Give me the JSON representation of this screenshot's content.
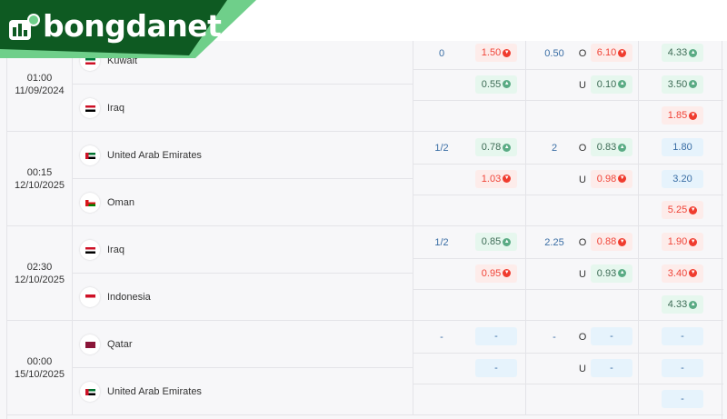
{
  "brand": {
    "name": "bongdanet",
    "colors": {
      "dark_green": "#0e5a22",
      "light_green": "#6fcf8a"
    }
  },
  "colors": {
    "up": "#5aab84",
    "down": "#f03c2e",
    "line": "#3a6ea5"
  },
  "matches": [
    {
      "time": "01:00",
      "date": "11/09/2024",
      "teams": [
        {
          "name": "Kuwait",
          "flag": "kuwait"
        },
        {
          "name": "Iraq",
          "flag": "iraq"
        }
      ],
      "handicap": {
        "line": "0",
        "odds": [
          {
            "v": "1.50",
            "t": "down"
          },
          {
            "v": "0.55",
            "t": "up"
          }
        ]
      },
      "over_under": {
        "line": "0.50",
        "labels": [
          "O",
          "U"
        ],
        "odds": [
          {
            "v": "6.10",
            "t": "down"
          },
          {
            "v": "0.10",
            "t": "up"
          }
        ]
      },
      "x12": [
        {
          "v": "4.33",
          "t": "up"
        },
        {
          "v": "3.50",
          "t": "up"
        },
        {
          "v": "1.85",
          "t": "down"
        }
      ]
    },
    {
      "time": "00:15",
      "date": "12/10/2025",
      "teams": [
        {
          "name": "United Arab Emirates",
          "flag": "uae"
        },
        {
          "name": "Oman",
          "flag": "oman"
        }
      ],
      "handicap": {
        "line": "1/2",
        "odds": [
          {
            "v": "0.78",
            "t": "up"
          },
          {
            "v": "1.03",
            "t": "down"
          }
        ]
      },
      "over_under": {
        "line": "2",
        "labels": [
          "O",
          "U"
        ],
        "odds": [
          {
            "v": "0.83",
            "t": "up"
          },
          {
            "v": "0.98",
            "t": "down"
          }
        ]
      },
      "x12": [
        {
          "v": "1.80",
          "t": "none"
        },
        {
          "v": "3.20",
          "t": "none"
        },
        {
          "v": "5.25",
          "t": "down"
        }
      ]
    },
    {
      "time": "02:30",
      "date": "12/10/2025",
      "teams": [
        {
          "name": "Iraq",
          "flag": "iraq"
        },
        {
          "name": "Indonesia",
          "flag": "indonesia"
        }
      ],
      "handicap": {
        "line": "1/2",
        "odds": [
          {
            "v": "0.85",
            "t": "up"
          },
          {
            "v": "0.95",
            "t": "down"
          }
        ]
      },
      "over_under": {
        "line": "2.25",
        "labels": [
          "O",
          "U"
        ],
        "odds": [
          {
            "v": "0.88",
            "t": "down"
          },
          {
            "v": "0.93",
            "t": "up"
          }
        ]
      },
      "x12": [
        {
          "v": "1.90",
          "t": "down"
        },
        {
          "v": "3.40",
          "t": "down"
        },
        {
          "v": "4.33",
          "t": "up"
        }
      ]
    },
    {
      "time": "00:00",
      "date": "15/10/2025",
      "teams": [
        {
          "name": "Qatar",
          "flag": "qatar"
        },
        {
          "name": "United Arab Emirates",
          "flag": "uae"
        }
      ],
      "handicap": {
        "line": "-",
        "odds": [
          {
            "v": "-",
            "t": "none"
          },
          {
            "v": "-",
            "t": "none"
          }
        ]
      },
      "over_under": {
        "line": "-",
        "labels": [
          "O",
          "U"
        ],
        "odds": [
          {
            "v": "-",
            "t": "none"
          },
          {
            "v": "-",
            "t": "none"
          }
        ]
      },
      "x12": [
        {
          "v": "-",
          "t": "none"
        },
        {
          "v": "-",
          "t": "none"
        },
        {
          "v": "-",
          "t": "none"
        }
      ]
    }
  ]
}
